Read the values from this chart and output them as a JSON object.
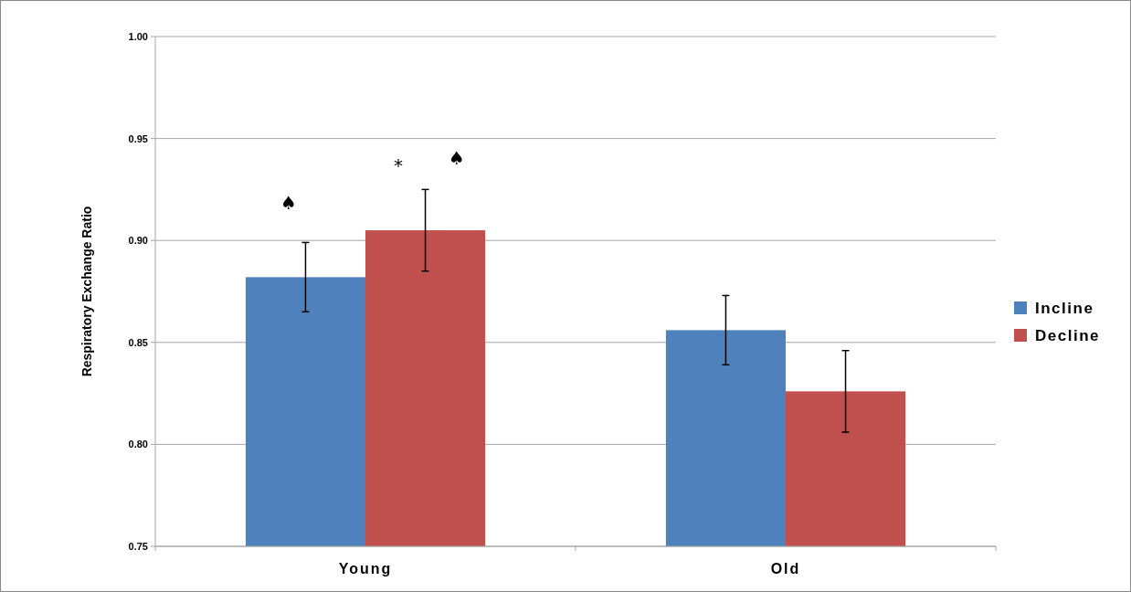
{
  "chart_data": {
    "type": "bar",
    "ylabel": "Respiratory Exchange Ratio",
    "categories": [
      "Young",
      "Old"
    ],
    "series": [
      {
        "name": "Incline",
        "color": "#4f81bd",
        "values": [
          0.882,
          0.856
        ],
        "errors": [
          0.017,
          0.017
        ]
      },
      {
        "name": "Decline",
        "color": "#c0504d",
        "values": [
          0.905,
          0.826
        ],
        "errors": [
          0.02,
          0.02
        ]
      }
    ],
    "ylim": [
      0.75,
      1.0
    ],
    "yticks": [
      0.75,
      {
        "value": 0.8,
        "label": "0.80"
      },
      0.85,
      {
        "value": 0.9,
        "label": "0.90"
      },
      0.95,
      {
        "value": 1.0,
        "label": "1.00"
      }
    ],
    "grid": "y",
    "legend": "right",
    "annotations": [
      "♠",
      "*",
      "♠"
    ]
  }
}
